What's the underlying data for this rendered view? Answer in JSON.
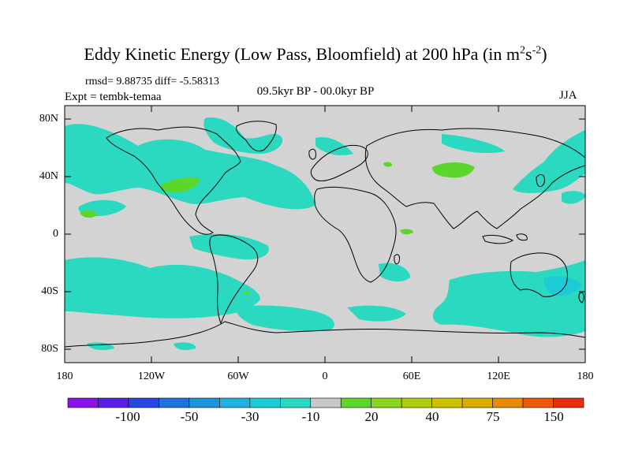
{
  "title": {
    "prefix": "Eddy Kinetic Energy (Low Pass, Bloomfield) at 200 hPa (in m",
    "sup1": "2",
    "mid": "s",
    "sup2": "-2",
    "suffix": ")"
  },
  "stats": "rmsd= 9.88735 diff= -5.58313",
  "expt": "Expt = tembk-temaa",
  "period": "09.5kyr BP - 00.0kyr BP",
  "season": "JJA",
  "lat_labels": [
    "80N",
    "40N",
    "0",
    "40S",
    "80S"
  ],
  "lon_labels": [
    "180",
    "120W",
    "60W",
    "0",
    "60E",
    "120E",
    "180"
  ],
  "colorbar": {
    "colors": [
      "#8a12e8",
      "#5a1ee6",
      "#2a46e0",
      "#1e72dc",
      "#1c95da",
      "#20b2dc",
      "#1ccbd6",
      "#2ad9c0",
      "#c8c8c8",
      "#5cd62a",
      "#8cd41e",
      "#b0cc12",
      "#ccc200",
      "#dcac00",
      "#e88a00",
      "#ec5a0a",
      "#e62e10"
    ],
    "labels": [
      "-100",
      "-50",
      "-30",
      "-10",
      "20",
      "40",
      "75",
      "150"
    ]
  },
  "colors": {
    "ocean_land_bg": "#d3d3d3",
    "negative": "#2ad9c0",
    "negative_dark": "#1ccbd6",
    "positive": "#5cd62a"
  }
}
